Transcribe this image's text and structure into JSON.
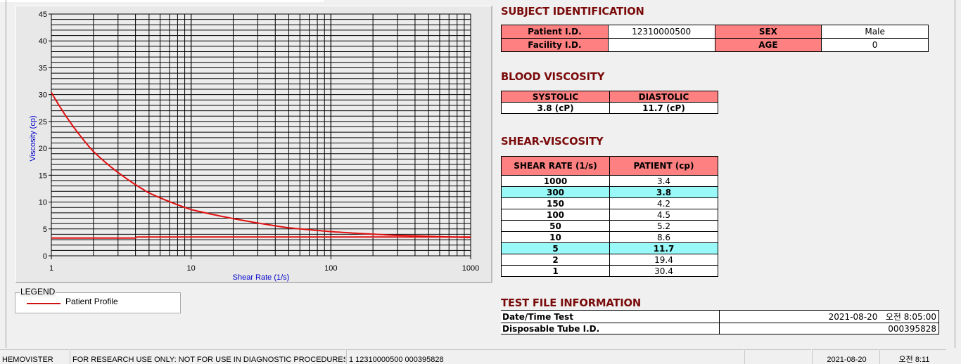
{
  "chart_data": {
    "type": "line",
    "xlabel": "Shear Rate (1/s)",
    "ylabel": "Viscosity (cp)",
    "x_scale": "log",
    "xlim": [
      1,
      1000
    ],
    "ylim": [
      0,
      45
    ],
    "x_ticks": [
      "1",
      "10",
      "100",
      "1000"
    ],
    "y_ticks": [
      "0",
      "5",
      "10",
      "15",
      "20",
      "25",
      "30",
      "35",
      "40",
      "45"
    ],
    "grid": true,
    "series": [
      {
        "name": "Patient Profile",
        "color": "#e01010",
        "points": [
          [
            1,
            30.4
          ],
          [
            2,
            19.4
          ],
          [
            5,
            11.7
          ],
          [
            10,
            8.6
          ],
          [
            50,
            5.2
          ],
          [
            100,
            4.5
          ],
          [
            150,
            4.2
          ],
          [
            300,
            3.8
          ],
          [
            1000,
            3.4
          ]
        ]
      },
      {
        "color": "#e01010",
        "points": [
          [
            1,
            3.3
          ],
          [
            4,
            3.3
          ],
          [
            4.1,
            3.5
          ],
          [
            1000,
            3.5
          ]
        ]
      }
    ]
  },
  "legend": {
    "title": "LEGEND",
    "items": [
      {
        "label": "Patient Profile",
        "color": "#d01010"
      }
    ]
  },
  "subject": {
    "title": "SUBJECT IDENTIFICATION",
    "patient_id_label": "Patient I.D.",
    "patient_id": "12310000500",
    "sex_label": "SEX",
    "sex": "Male",
    "facility_label": "Facility I.D.",
    "facility": "",
    "age_label": "AGE",
    "age": "0"
  },
  "blood": {
    "title": "BLOOD VISCOSITY",
    "systolic_label": "SYSTOLIC",
    "diastolic_label": "DIASTOLIC",
    "systolic": "3.8 (cP)",
    "diastolic": "11.7 (cP)"
  },
  "shear": {
    "title": "SHEAR-VISCOSITY",
    "col1": "SHEAR RATE (1/s)",
    "col2": "PATIENT (cp)",
    "rows": [
      {
        "rate": "1000",
        "val": "3.4"
      },
      {
        "rate": "300",
        "val": "3.8",
        "hl": true
      },
      {
        "rate": "150",
        "val": "4.2"
      },
      {
        "rate": "100",
        "val": "4.5"
      },
      {
        "rate": "50",
        "val": "5.2"
      },
      {
        "rate": "10",
        "val": "8.6"
      },
      {
        "rate": "5",
        "val": "11.7",
        "hl": true
      },
      {
        "rate": "2",
        "val": "19.4"
      },
      {
        "rate": "1",
        "val": "30.4"
      }
    ],
    "highlight_color": "#99f8f8"
  },
  "testfile": {
    "title": "TEST FILE INFORMATION",
    "date_label": "Date/Time Test",
    "date": "2021-08-20   오전 8:05:00",
    "tube_label": "Disposable Tube I.D.",
    "tube": "000395828"
  },
  "status": {
    "app": "HEMOVISTER",
    "notice": "FOR RESEARCH USE ONLY: NOT FOR USE IN DIAGNOSTIC PROCEDURES",
    "record": "1  12310000500  000395828",
    "blank": "",
    "date": "2021-08-20",
    "time": "오전 8:11"
  },
  "colors": {
    "header_cell": "#ff8080",
    "heading": "#7a0a0a",
    "curve": "#e01010",
    "axis_label": "#0000cc"
  }
}
